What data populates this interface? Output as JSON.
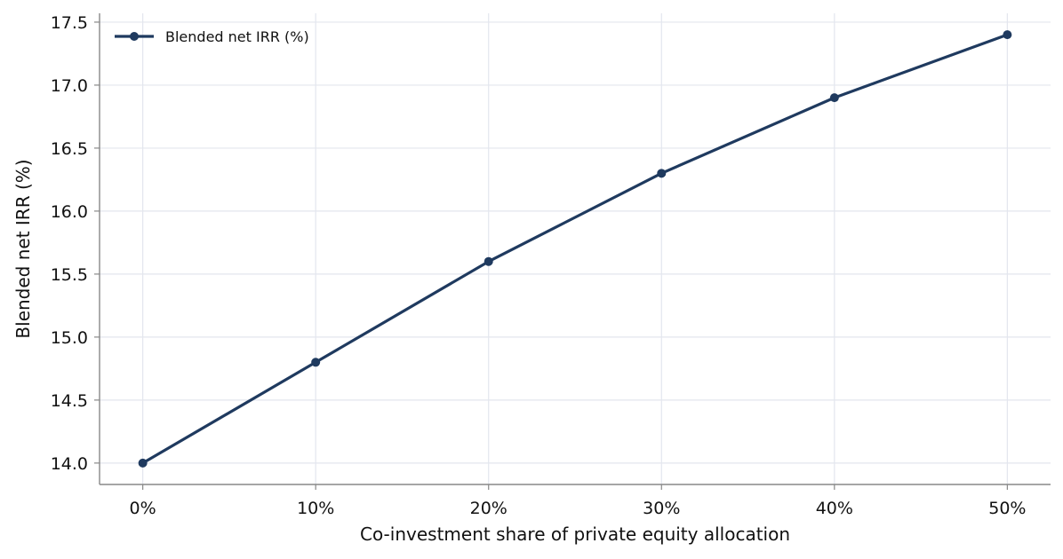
{
  "chart_data": {
    "type": "line",
    "title": "",
    "xlabel": "Co-investment share of private equity allocation",
    "ylabel": "Blended net IRR (%)",
    "x": [
      0,
      10,
      20,
      30,
      40,
      50
    ],
    "x_tick_labels": [
      "0%",
      "10%",
      "20%",
      "30%",
      "40%",
      "50%"
    ],
    "xlim": [
      -2.5,
      52.5
    ],
    "ylim": [
      13.83,
      17.57
    ],
    "y_ticks": [
      14.0,
      14.5,
      15.0,
      15.5,
      16.0,
      16.5,
      17.0,
      17.5
    ],
    "y_tick_labels": [
      "14.0",
      "14.5",
      "15.0",
      "15.5",
      "16.0",
      "16.5",
      "17.0",
      "17.5"
    ],
    "series": [
      {
        "name": "Blended net IRR (%)",
        "values": [
          14.0,
          14.8,
          15.6,
          16.3,
          16.9,
          17.4
        ],
        "color": "#1f3a5f",
        "marker": "circle"
      }
    ],
    "grid": true,
    "legend_position": "top-left"
  },
  "colors": {
    "grid": "#e3e6ee",
    "axis": "#888888"
  }
}
